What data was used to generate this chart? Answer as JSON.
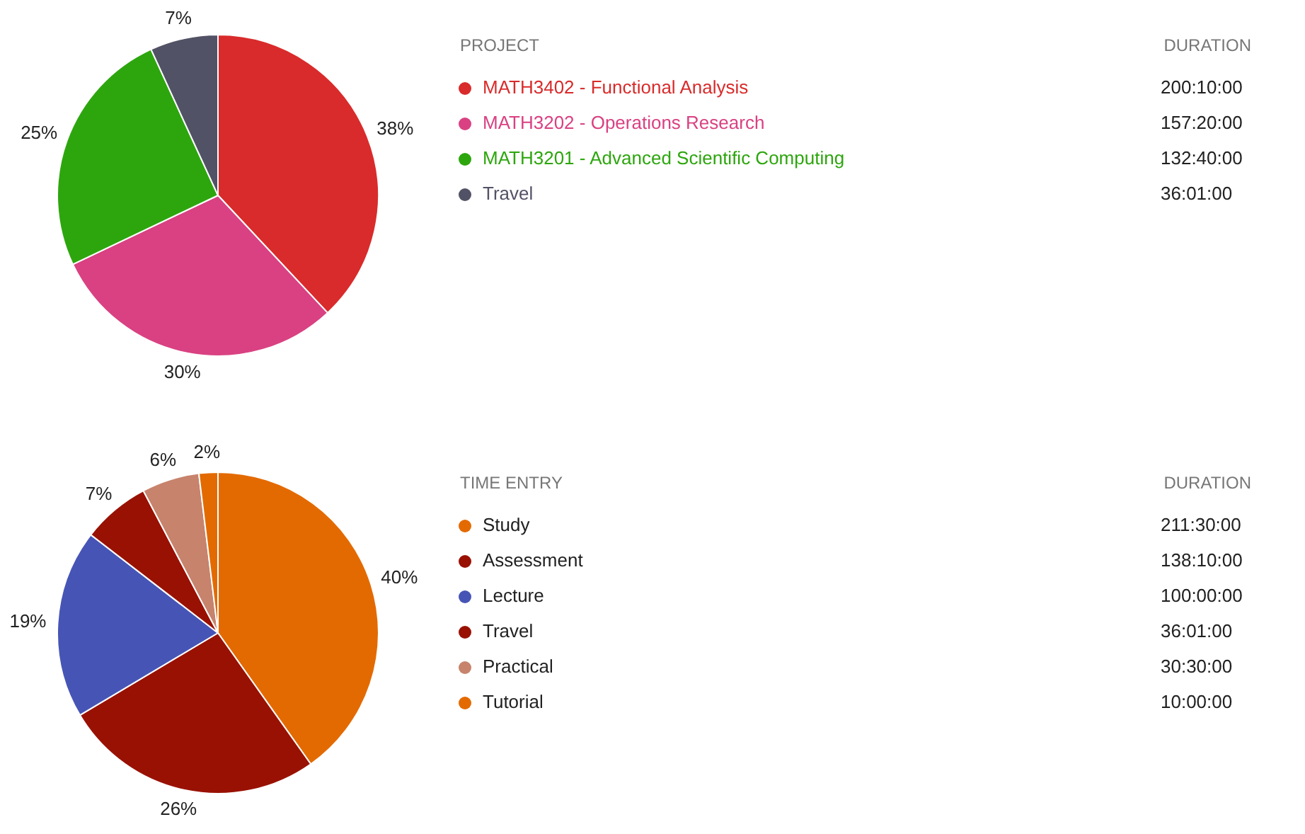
{
  "chart_data": [
    {
      "type": "pie",
      "legend_title": "PROJECT",
      "legend": "right",
      "categories": [
        "MATH3402 - Functional Analysis",
        "MATH3202 - Operations Research",
        "MATH3201 - Advanced Scientific Computing",
        "Travel"
      ],
      "values": [
        200.1667,
        157.3333,
        132.6667,
        36.0167
      ],
      "colors": [
        "#d92b2b",
        "#d94182",
        "#2da60e",
        "#525266"
      ],
      "value_labels": [
        "200:10:00",
        "157:20:00",
        "132:40:00",
        "36:01:00"
      ],
      "annotations": [
        "DURATION",
        "38%",
        "30%",
        "25%",
        "7%"
      ]
    },
    {
      "type": "pie",
      "legend_title": "TIME ENTRY",
      "legend": "right",
      "categories": [
        "Study",
        "Assessment",
        "Lecture",
        "Travel",
        "Practical",
        "Tutorial"
      ],
      "values": [
        211.5,
        138.1667,
        100,
        36.0167,
        30.5,
        10
      ],
      "colors": [
        "#e36a00",
        "#991102",
        "#4655b5",
        "#991102",
        "#c7836c",
        "#e36a00"
      ],
      "value_labels": [
        "211:30:00",
        "138:10:00",
        "100:00:00",
        "36:01:00",
        "30:30:00",
        "10:00:00"
      ],
      "annotations": [
        "DURATION",
        "40%",
        "26%",
        "19%",
        "7%",
        "6%",
        "2%"
      ]
    }
  ]
}
